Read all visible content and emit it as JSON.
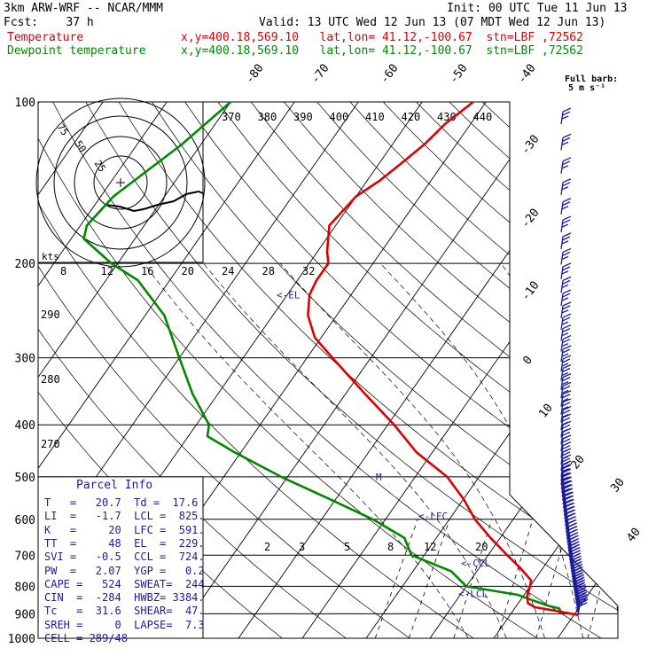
{
  "header": {
    "model": "3km ARW-WRF -- NCAR/MMM",
    "init": "Init: 00 UTC Tue 11 Jun 13",
    "fcst": "Fcst:    37 h",
    "valid": "Valid: 13 UTC Wed 12 Jun 13 (07 MDT Wed 12 Jun 13)",
    "temp_label": "Temperature",
    "dew_label": "Dewpoint temperature",
    "temp_info": "x,y=400.18,569.10   lat,lon= 41.12,-100.67  stn=LBF ,72562",
    "dew_info": "x,y=400.18,569.10   lat,lon= 41.12,-100.67  stn=LBF ,72562"
  },
  "barb_legend": {
    "title": "Full barb:",
    "value": "5 m s⁻¹"
  },
  "parcel": {
    "title": "Parcel Info",
    "lines": [
      "T   =   20.7  Td =  17.6",
      "LI  =   -1.7  LCL =  825.",
      "K   =     20  LFC =  591.",
      "TT  =     48  EL  =  229.",
      "SVI =   -0.5  CCL =  724.",
      "PW  =   2.07  YGP =   0.2",
      "CAPE =   524  SWEAT=  244",
      "CIN  =  -284  HWBZ= 3384.",
      "Tc   =  31.6  SHEAR=  47.",
      "SREH =     0  LAPSE=  7.3",
      "CELL = 289/48"
    ]
  },
  "chart_data": {
    "type": "line",
    "diagram": "skew-T log-p",
    "y_scale": "log",
    "ylim": [
      1000,
      100
    ],
    "pressure_levels": [
      100,
      200,
      300,
      400,
      500,
      600,
      700,
      800,
      900,
      1000
    ],
    "isotherm_labels": [
      -80,
      -70,
      -60,
      -50,
      -40,
      -30,
      -20,
      -10,
      0,
      10,
      20,
      30,
      40
    ],
    "theta_labels": [
      370,
      380,
      390,
      400,
      410,
      420,
      430,
      440
    ],
    "theta_e_labels": [
      290,
      280,
      270
    ],
    "mixing_ratio_labels": [
      2,
      3,
      5,
      8,
      12,
      20
    ],
    "hodograph": {
      "kts_label": "kts",
      "speed_ticks": [
        8,
        12,
        16,
        20,
        24,
        28,
        32
      ],
      "ring_labels": [
        75,
        50,
        25
      ]
    },
    "annotations": [
      {
        "text": "<-EL",
        "p": 229
      },
      {
        "text": "M",
        "p": 500
      },
      {
        "text": "<-LFC",
        "p": 591
      },
      {
        "text": "<-CCL",
        "p": 724
      },
      {
        "text": "<-LCL",
        "p": 825
      }
    ],
    "series": [
      {
        "name": "Temperature",
        "color": "#dd0000",
        "points": [
          [
            100,
            -52
          ],
          [
            110,
            -54
          ],
          [
            120,
            -55
          ],
          [
            130,
            -56.5
          ],
          [
            140,
            -58
          ],
          [
            150,
            -60
          ],
          [
            170,
            -61
          ],
          [
            190,
            -58.5
          ],
          [
            200,
            -57
          ],
          [
            215,
            -57
          ],
          [
            229,
            -56.5
          ],
          [
            250,
            -54.5
          ],
          [
            275,
            -51
          ],
          [
            300,
            -46
          ],
          [
            350,
            -37
          ],
          [
            400,
            -29
          ],
          [
            450,
            -22.5
          ],
          [
            500,
            -15
          ],
          [
            550,
            -10
          ],
          [
            600,
            -6
          ],
          [
            650,
            -1.5
          ],
          [
            700,
            3
          ],
          [
            740,
            6.5
          ],
          [
            780,
            9.5
          ],
          [
            800,
            10
          ],
          [
            830,
            10.5
          ],
          [
            860,
            11.5
          ],
          [
            875,
            13
          ],
          [
            890,
            17
          ],
          [
            905,
            20.7
          ]
        ]
      },
      {
        "name": "Dewpoint temperature",
        "color": "#008800",
        "points": [
          [
            100,
            -90
          ],
          [
            120,
            -93
          ],
          [
            150,
            -98
          ],
          [
            170,
            -99
          ],
          [
            180,
            -98
          ],
          [
            200,
            -91
          ],
          [
            215,
            -85
          ],
          [
            250,
            -77
          ],
          [
            300,
            -70
          ],
          [
            350,
            -64
          ],
          [
            400,
            -58
          ],
          [
            420,
            -57
          ],
          [
            450,
            -51
          ],
          [
            500,
            -41
          ],
          [
            550,
            -31
          ],
          [
            600,
            -22
          ],
          [
            650,
            -15
          ],
          [
            700,
            -12
          ],
          [
            750,
            -4
          ],
          [
            800,
            0
          ],
          [
            830,
            9
          ],
          [
            850,
            12
          ],
          [
            870,
            15
          ],
          [
            880,
            17
          ],
          [
            890,
            17.5
          ],
          [
            900,
            17.6
          ]
        ]
      }
    ],
    "wind_barbs": {
      "unit": "m s-1",
      "full_barb": 5
    }
  }
}
